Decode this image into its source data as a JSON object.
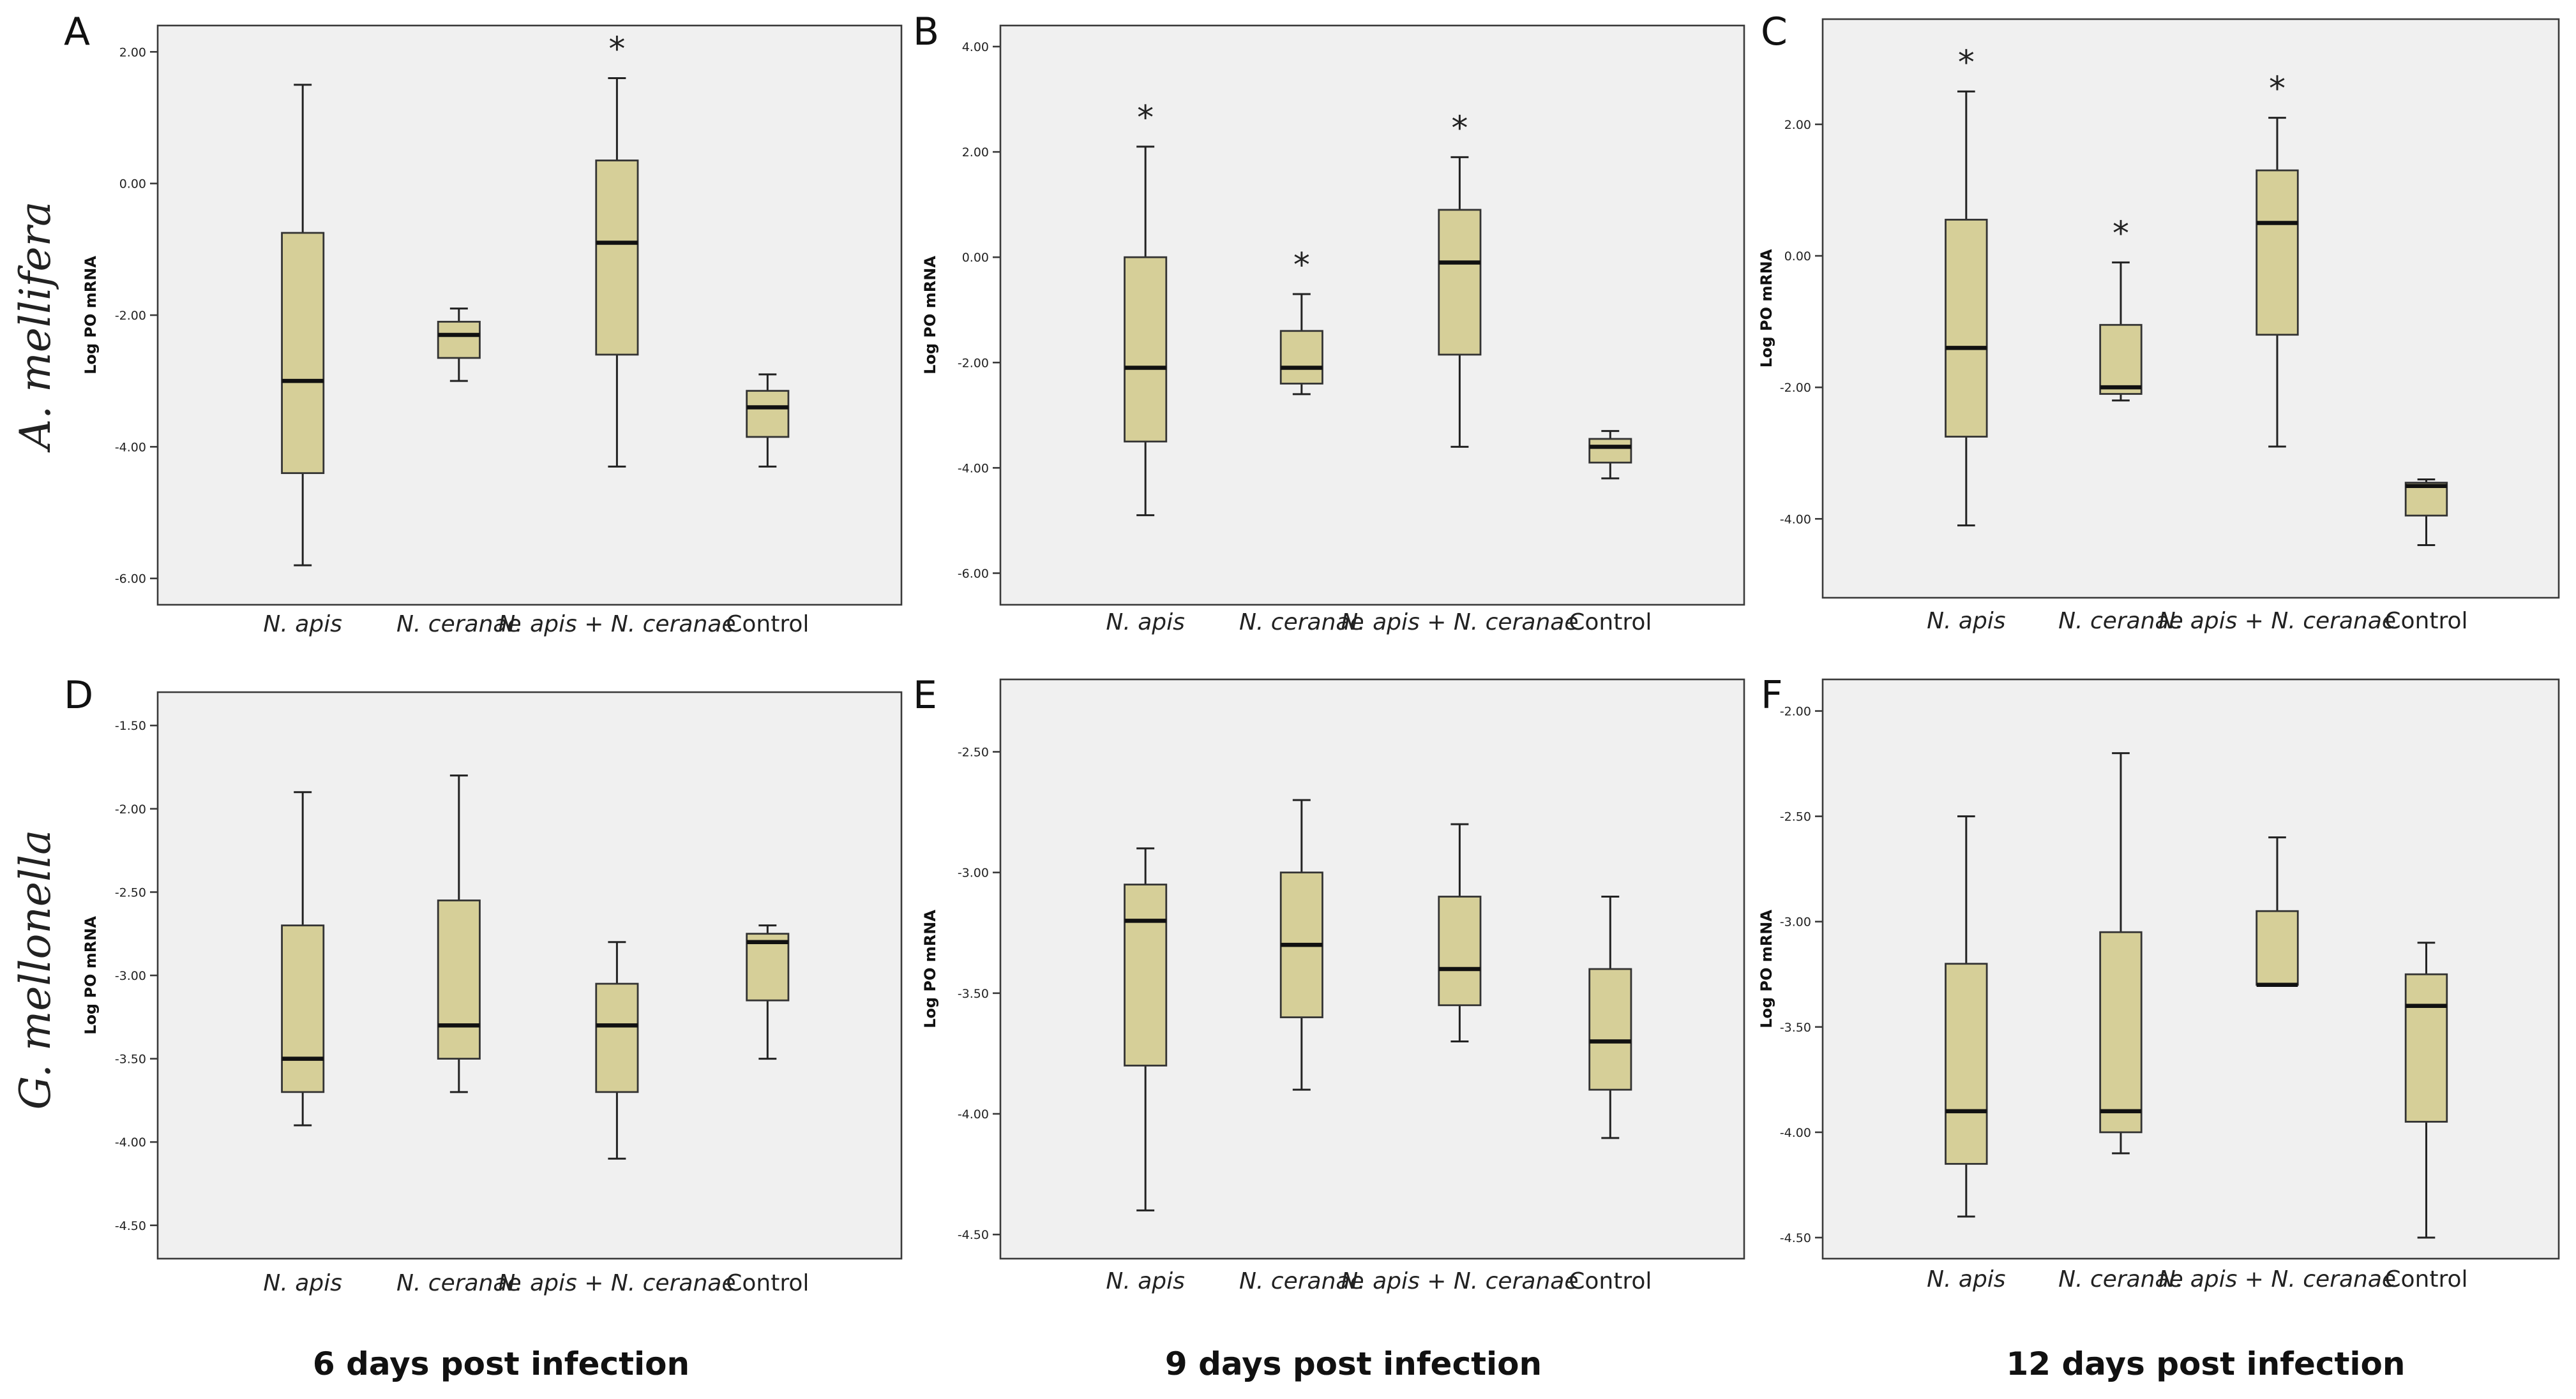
{
  "row_labels": [
    "A. mellifera",
    "G. mellonella"
  ],
  "column_titles": [
    "6 days post infection",
    "9 days post infection",
    "12 days post infection"
  ],
  "colors": {
    "box_fill": "#d6cf98",
    "panel_bg": "#f0f0f0"
  },
  "chart_data": [
    {
      "panel": "A",
      "type": "box",
      "title": "",
      "ylabel": "Log PO mRNA",
      "categories": [
        "N. apis",
        "N. ceranae",
        "N. apis + N. ceranae",
        "Control"
      ],
      "yticks": [
        2.0,
        0.0,
        -2.0,
        -4.0,
        -6.0
      ],
      "yticklabels": [
        "2.00",
        "0.00",
        "-2.00",
        "-4.00",
        "-6.00"
      ],
      "ylim": [
        -6.4,
        2.4
      ],
      "boxes": [
        {
          "min": -5.8,
          "q1": -4.4,
          "median": -3.0,
          "q3": -0.75,
          "max": 1.5,
          "star": false
        },
        {
          "min": -3.0,
          "q1": -2.65,
          "median": -2.3,
          "q3": -2.1,
          "max": -1.9,
          "star": false
        },
        {
          "min": -4.3,
          "q1": -2.6,
          "median": -0.9,
          "q3": 0.35,
          "max": 1.6,
          "star": true
        },
        {
          "min": -4.3,
          "q1": -3.85,
          "median": -3.4,
          "q3": -3.15,
          "max": -2.9,
          "star": false
        }
      ]
    },
    {
      "panel": "B",
      "type": "box",
      "title": "",
      "ylabel": "Log PO mRNA",
      "categories": [
        "N. apis",
        "N. ceranae",
        "N. apis + N. ceranae",
        "Control"
      ],
      "yticks": [
        4.0,
        2.0,
        0.0,
        -2.0,
        -4.0,
        -6.0
      ],
      "yticklabels": [
        "4.00",
        "2.00",
        "0.00",
        "-2.00",
        "-4.00",
        "-6.00"
      ],
      "ylim": [
        -6.6,
        4.4
      ],
      "boxes": [
        {
          "min": -4.9,
          "q1": -3.5,
          "median": -2.1,
          "q3": 0.0,
          "max": 2.1,
          "star": true
        },
        {
          "min": -2.6,
          "q1": -2.4,
          "median": -2.1,
          "q3": -1.4,
          "max": -0.7,
          "star": true
        },
        {
          "min": -3.6,
          "q1": -1.85,
          "median": -0.1,
          "q3": 0.9,
          "max": 1.9,
          "star": true
        },
        {
          "min": -4.2,
          "q1": -3.9,
          "median": -3.6,
          "q3": -3.45,
          "max": -3.3,
          "star": false
        }
      ]
    },
    {
      "panel": "C",
      "type": "box",
      "title": "",
      "ylabel": "Log PO mRNA",
      "categories": [
        "N. apis",
        "N. ceranae",
        "N. apis + N. ceranae",
        "Control"
      ],
      "yticks": [
        2.0,
        0.0,
        -2.0,
        -4.0
      ],
      "yticklabels": [
        "2.00",
        "0.00",
        "-2.00",
        "-4.00"
      ],
      "ylim": [
        -5.2,
        3.6
      ],
      "boxes": [
        {
          "min": -4.1,
          "q1": -2.75,
          "median": -1.4,
          "q3": 0.55,
          "max": 2.5,
          "star": true
        },
        {
          "min": -2.2,
          "q1": -2.1,
          "median": -2.0,
          "q3": -1.05,
          "max": -0.1,
          "star": true
        },
        {
          "min": -2.9,
          "q1": -1.2,
          "median": 0.5,
          "q3": 1.3,
          "max": 2.1,
          "star": true
        },
        {
          "min": -4.4,
          "q1": -3.95,
          "median": -3.5,
          "q3": -3.45,
          "max": -3.4,
          "star": false
        }
      ]
    },
    {
      "panel": "D",
      "type": "box",
      "title": "",
      "ylabel": "Log PO mRNA",
      "categories": [
        "N. apis",
        "N. ceranae",
        "N. apis + N. ceranae",
        "Control"
      ],
      "yticks": [
        -1.5,
        -2.0,
        -2.5,
        -3.0,
        -3.5,
        -4.0,
        -4.5
      ],
      "yticklabels": [
        "-1.50",
        "-2.00",
        "-2.50",
        "-3.00",
        "-3.50",
        "-4.00",
        "-4.50"
      ],
      "ylim": [
        -4.7,
        -1.3
      ],
      "boxes": [
        {
          "min": -3.9,
          "q1": -3.7,
          "median": -3.5,
          "q3": -2.7,
          "max": -1.9,
          "star": false
        },
        {
          "min": -3.7,
          "q1": -3.5,
          "median": -3.3,
          "q3": -2.55,
          "max": -1.8,
          "star": false
        },
        {
          "min": -4.1,
          "q1": -3.7,
          "median": -3.3,
          "q3": -3.05,
          "max": -2.8,
          "star": false
        },
        {
          "min": -3.5,
          "q1": -3.15,
          "median": -2.8,
          "q3": -2.75,
          "max": -2.7,
          "star": false
        }
      ]
    },
    {
      "panel": "E",
      "type": "box",
      "title": "",
      "ylabel": "Log PO mRNA",
      "categories": [
        "N. apis",
        "N. ceranae",
        "N. apis + N. ceranae",
        "Control"
      ],
      "yticks": [
        -2.5,
        -3.0,
        -3.5,
        -4.0,
        -4.5
      ],
      "yticklabels": [
        "-2.50",
        "-3.00",
        "-3.50",
        "-4.00",
        "-4.50"
      ],
      "ylim": [
        -4.6,
        -2.2
      ],
      "boxes": [
        {
          "min": -4.4,
          "q1": -3.8,
          "median": -3.2,
          "q3": -3.05,
          "max": -2.9,
          "star": false
        },
        {
          "min": -3.9,
          "q1": -3.6,
          "median": -3.3,
          "q3": -3.0,
          "max": -2.7,
          "star": false
        },
        {
          "min": -3.7,
          "q1": -3.55,
          "median": -3.4,
          "q3": -3.1,
          "max": -2.8,
          "star": false
        },
        {
          "min": -4.1,
          "q1": -3.9,
          "median": -3.7,
          "q3": -3.4,
          "max": -3.1,
          "star": false
        }
      ]
    },
    {
      "panel": "F",
      "type": "box",
      "title": "",
      "ylabel": "Log PO mRNA",
      "categories": [
        "N. apis",
        "N. ceranae",
        "N. apis + N. ceranae",
        "Control"
      ],
      "yticks": [
        -2.0,
        -2.5,
        -3.0,
        -3.5,
        -4.0,
        -4.5
      ],
      "yticklabels": [
        "-2.00",
        "-2.50",
        "-3.00",
        "-3.50",
        "-4.00",
        "-4.50"
      ],
      "ylim": [
        -4.6,
        -1.85
      ],
      "boxes": [
        {
          "min": -4.4,
          "q1": -4.15,
          "median": -3.9,
          "q3": -3.2,
          "max": -2.5,
          "star": false
        },
        {
          "min": -4.1,
          "q1": -4.0,
          "median": -3.9,
          "q3": -3.05,
          "max": -2.2,
          "star": false
        },
        {
          "min": -3.3,
          "q1": -3.3,
          "median": -3.3,
          "q3": -2.95,
          "max": -2.6,
          "star": false
        },
        {
          "min": -4.5,
          "q1": -3.95,
          "median": -3.4,
          "q3": -3.25,
          "max": -3.1,
          "star": false
        }
      ]
    }
  ]
}
